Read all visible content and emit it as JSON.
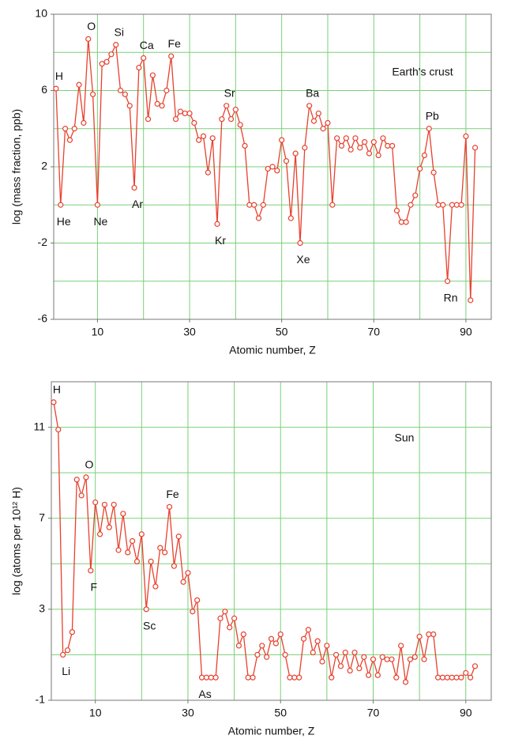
{
  "chart_data": [
    {
      "type": "line",
      "xlabel": "Atomic number,  Z",
      "ylabel": "log (mass fraction, ppb)",
      "label": "Earth's crust",
      "xlim": [
        0.5,
        95.5
      ],
      "xticks": [
        10,
        30,
        50,
        70,
        90
      ],
      "xgrid": [
        10,
        20,
        30,
        40,
        50,
        60,
        70,
        80,
        90
      ],
      "ylim": [
        -6,
        10
      ],
      "yticks": [
        10,
        6,
        2,
        -2,
        -6
      ],
      "ygrid": [
        8,
        6,
        4,
        2,
        0,
        -2,
        -4
      ],
      "grid": true,
      "x": [
        1,
        2,
        3,
        4,
        5,
        6,
        7,
        8,
        9,
        10,
        11,
        12,
        13,
        14,
        15,
        16,
        17,
        18,
        19,
        20,
        21,
        22,
        23,
        24,
        25,
        26,
        27,
        28,
        29,
        30,
        31,
        32,
        33,
        34,
        35,
        36,
        37,
        38,
        39,
        40,
        41,
        42,
        43,
        44,
        45,
        46,
        47,
        48,
        49,
        50,
        51,
        52,
        53,
        54,
        55,
        56,
        57,
        58,
        59,
        60,
        61,
        62,
        63,
        64,
        65,
        66,
        67,
        68,
        69,
        70,
        71,
        72,
        73,
        74,
        75,
        76,
        77,
        78,
        79,
        80,
        81,
        82,
        83,
        84,
        85,
        86,
        87,
        88,
        89,
        90,
        91,
        92
      ],
      "series": [
        {
          "color": "#e8402e",
          "values": [
            6.1,
            0,
            4.0,
            3.4,
            4.0,
            6.3,
            4.3,
            8.7,
            5.8,
            0,
            7.4,
            7.5,
            7.9,
            8.4,
            6.0,
            5.8,
            5.2,
            0.9,
            7.2,
            7.7,
            4.5,
            6.8,
            5.3,
            5.2,
            6.0,
            7.8,
            4.5,
            4.9,
            4.8,
            4.8,
            4.3,
            3.4,
            3.6,
            1.7,
            3.5,
            -1.0,
            4.5,
            5.2,
            4.5,
            5.0,
            4.2,
            3.1,
            0,
            0,
            -0.7,
            0,
            1.9,
            2.0,
            1.8,
            3.4,
            2.3,
            -0.7,
            2.7,
            -2.0,
            3.0,
            5.2,
            4.4,
            4.8,
            4.0,
            4.3,
            0,
            3.5,
            3.1,
            3.5,
            2.9,
            3.5,
            3.0,
            3.3,
            2.7,
            3.3,
            2.6,
            3.5,
            3.1,
            3.1,
            -0.3,
            -0.9,
            -0.9,
            0,
            0.5,
            1.9,
            2.6,
            4.0,
            1.7,
            0,
            0,
            -4.0,
            0,
            0,
            0,
            3.6,
            -5.0,
            3.0
          ]
        }
      ],
      "annotations": [
        {
          "text": "H",
          "z": 1,
          "position": "above"
        },
        {
          "text": "He",
          "z": 2,
          "position": "below"
        },
        {
          "text": "O",
          "z": 8,
          "position": "above"
        },
        {
          "text": "Ne",
          "z": 10,
          "position": "below"
        },
        {
          "text": "Si",
          "z": 14,
          "position": "above"
        },
        {
          "text": "Ar",
          "z": 18,
          "position": "below"
        },
        {
          "text": "Ca",
          "z": 20,
          "position": "above"
        },
        {
          "text": "Fe",
          "z": 26,
          "position": "above"
        },
        {
          "text": "Kr",
          "z": 36,
          "position": "below"
        },
        {
          "text": "Sr",
          "z": 38,
          "position": "above"
        },
        {
          "text": "Xe",
          "z": 54,
          "position": "below"
        },
        {
          "text": "Ba",
          "z": 56,
          "position": "above"
        },
        {
          "text": "Pb",
          "z": 82,
          "position": "above"
        },
        {
          "text": "Rn",
          "z": 86,
          "position": "below"
        }
      ]
    },
    {
      "type": "line",
      "xlabel": "Atomic number,  Z",
      "ylabel": "log (atoms per 10¹² H)",
      "label": "Sun",
      "xlim": [
        0.5,
        95.5
      ],
      "xticks": [
        10,
        30,
        50,
        70,
        90
      ],
      "xgrid": [
        10,
        20,
        30,
        40,
        50,
        60,
        70,
        80,
        90
      ],
      "ylim": [
        -1,
        13
      ],
      "yticks": [
        11,
        7,
        3,
        -1
      ],
      "ygrid": [
        13,
        11,
        9,
        7,
        5,
        3,
        1
      ],
      "grid": true,
      "x": [
        1,
        2,
        3,
        4,
        5,
        6,
        7,
        8,
        9,
        10,
        11,
        12,
        13,
        14,
        15,
        16,
        17,
        18,
        19,
        20,
        21,
        22,
        23,
        24,
        25,
        26,
        27,
        28,
        29,
        30,
        31,
        32,
        33,
        34,
        35,
        36,
        37,
        38,
        39,
        40,
        41,
        42,
        43,
        44,
        45,
        46,
        47,
        48,
        49,
        50,
        51,
        52,
        53,
        54,
        55,
        56,
        57,
        58,
        59,
        60,
        61,
        62,
        63,
        64,
        65,
        66,
        67,
        68,
        69,
        70,
        71,
        72,
        73,
        74,
        75,
        76,
        77,
        78,
        79,
        80,
        81,
        82,
        83,
        84,
        85,
        86,
        87,
        88,
        89,
        90,
        91,
        92
      ],
      "series": [
        {
          "color": "#e8402e",
          "values": [
            12.1,
            10.9,
            1.0,
            1.2,
            2.0,
            8.7,
            8.0,
            8.8,
            4.7,
            7.7,
            6.3,
            7.6,
            6.6,
            7.6,
            5.6,
            7.2,
            5.5,
            6.0,
            5.1,
            6.3,
            3.0,
            5.1,
            4.0,
            5.7,
            5.5,
            7.5,
            4.9,
            6.2,
            4.2,
            4.6,
            2.9,
            3.4,
            0,
            0,
            0,
            0,
            2.6,
            2.9,
            2.2,
            2.6,
            1.4,
            1.9,
            0,
            0,
            1.0,
            1.4,
            0.9,
            1.7,
            1.5,
            1.9,
            1.0,
            0,
            0,
            0,
            1.7,
            2.1,
            1.1,
            1.6,
            0.7,
            1.4,
            0,
            1.0,
            0.5,
            1.1,
            0.3,
            1.1,
            0.4,
            0.9,
            0.1,
            0.8,
            0.1,
            0.9,
            0.8,
            0.8,
            0,
            1.4,
            -0.2,
            0.8,
            0.9,
            1.8,
            0.8,
            1.9,
            1.9,
            0,
            0,
            0,
            0,
            0,
            0,
            0.2,
            0,
            0.5
          ]
        }
      ],
      "annotations": [
        {
          "text": "H",
          "z": 1,
          "position": "above"
        },
        {
          "text": "Li",
          "z": 3,
          "position": "below"
        },
        {
          "text": "O",
          "z": 8,
          "position": "above"
        },
        {
          "text": "F",
          "z": 9,
          "position": "below"
        },
        {
          "text": "Sc",
          "z": 21,
          "position": "below"
        },
        {
          "text": "Fe",
          "z": 26,
          "position": "above"
        },
        {
          "text": "As",
          "z": 33,
          "position": "below"
        }
      ]
    }
  ]
}
